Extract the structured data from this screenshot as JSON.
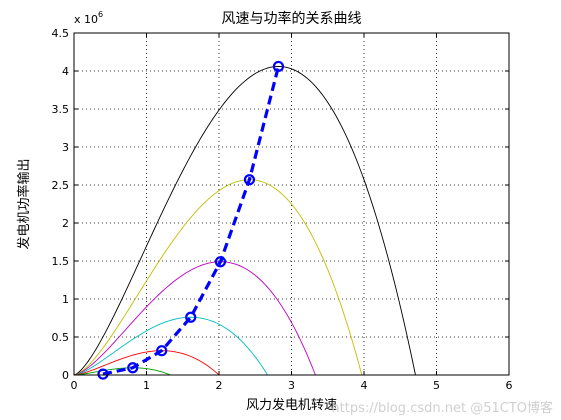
{
  "chart_data": {
    "type": "line",
    "title": "风速与功率的关系曲线",
    "xlabel": "风力发电机转速",
    "ylabel": "发电机功率输出",
    "y_exponent_label": "x 10",
    "y_exponent_power": "6",
    "xlim": [
      0,
      6
    ],
    "ylim": [
      0,
      4.5
    ],
    "xticks": [
      0,
      1,
      2,
      3,
      4,
      5,
      6
    ],
    "yticks": [
      0,
      0.5,
      1,
      1.5,
      2,
      2.5,
      3,
      3.5,
      4,
      4.5
    ],
    "xtick_labels": [
      "0",
      "1",
      "2",
      "3",
      "4",
      "5",
      "6"
    ],
    "ytick_labels": [
      "0",
      "0.5",
      "1",
      "1.5",
      "2",
      "2.5",
      "3",
      "3.5",
      "4",
      "4.5"
    ],
    "grid": true,
    "y_scale_factor": 1000000,
    "series": [
      {
        "color": "#000000",
        "peak_x": 2.82,
        "peak_y": 4.06,
        "x_end": 4.71
      },
      {
        "color": "#bfbf00",
        "peak_x": 2.42,
        "peak_y": 2.57,
        "x_end": 3.97
      },
      {
        "color": "#bf00bf",
        "peak_x": 2.02,
        "peak_y": 1.49,
        "x_end": 3.33
      },
      {
        "color": "#00bfbf",
        "peak_x": 1.61,
        "peak_y": 0.76,
        "x_end": 2.67
      },
      {
        "color": "#ff0000",
        "peak_x": 1.21,
        "peak_y": 0.32,
        "x_end": 2.0
      },
      {
        "color": "#00a000",
        "peak_x": 0.81,
        "peak_y": 0.095,
        "x_end": 1.33
      }
    ],
    "max_power_line": {
      "color": "#0000ff",
      "style": "dashed",
      "marker": "circle",
      "x": [
        0.4,
        0.81,
        1.21,
        1.61,
        2.02,
        2.42,
        2.82
      ],
      "y": [
        0.012,
        0.095,
        0.32,
        0.76,
        1.49,
        2.57,
        4.06
      ]
    }
  },
  "watermark": "https://blog.csdn.net @51CTO博客"
}
